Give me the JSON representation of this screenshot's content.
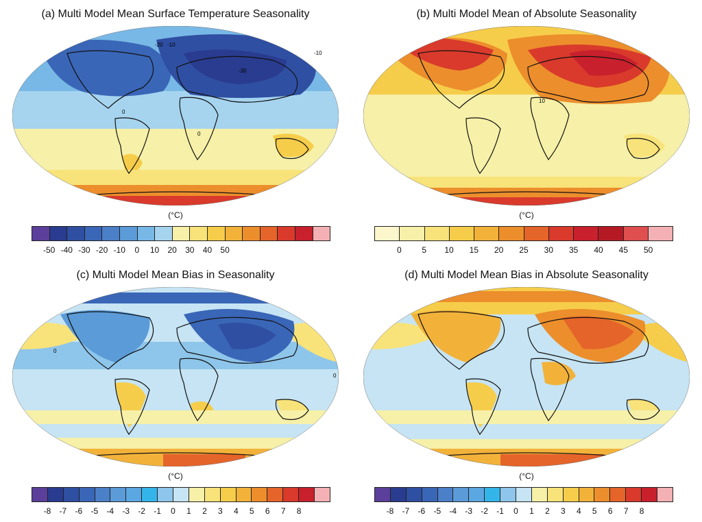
{
  "panels": [
    {
      "title": "(a) Multi Model Mean Surface Temperature Seasonality",
      "unit": "(°C)",
      "ticks": [
        "-50",
        "-40",
        "-30",
        "-20",
        "-10",
        "0",
        "10",
        "20",
        "30",
        "40",
        "50"
      ],
      "contour_labels": [
        "-20",
        "-10",
        "-30",
        "-10",
        "0",
        "0"
      ],
      "colors": [
        "#5b3f9b",
        "#2a3c8f",
        "#2f4fa2",
        "#3a66b7",
        "#4b7fc8",
        "#5b9bd8",
        "#78b8e6",
        "#a6d4ef",
        "#f6f0a8",
        "#f8e37a",
        "#f6cd4a",
        "#f2b23a",
        "#ec8e2c",
        "#e5642a",
        "#d93a2c",
        "#c8202c",
        "#f4b1b5"
      ]
    },
    {
      "title": "(b) Multi Model Mean of Absolute Seasonality",
      "unit": "(°C)",
      "ticks": [
        "0",
        "5",
        "10",
        "15",
        "20",
        "25",
        "30",
        "35",
        "40",
        "45",
        "50"
      ],
      "contour_labels": [
        "10"
      ],
      "colors": [
        "#fbf6cc",
        "#f6f0a8",
        "#f8e37a",
        "#f6cd4a",
        "#f2b23a",
        "#ec8e2c",
        "#e5642a",
        "#d93a2c",
        "#c8202c",
        "#b51a24",
        "#df4f4f",
        "#f4b1b5"
      ]
    },
    {
      "title": "(c) Multi Model Mean Bias in Seasonality",
      "unit": "(°C)",
      "ticks": [
        "-8",
        "-7",
        "-6",
        "-5",
        "-4",
        "-3",
        "-2",
        "-1",
        "0",
        "1",
        "2",
        "3",
        "4",
        "5",
        "6",
        "7",
        "8"
      ],
      "contour_labels": [
        "0",
        "0"
      ],
      "colors": [
        "#5b3f9b",
        "#2a3c8f",
        "#2f4fa2",
        "#3a66b7",
        "#4b7fc8",
        "#5b9bd8",
        "#5ba7e2",
        "#33b5ea",
        "#8ec5ea",
        "#c6e4f3",
        "#f6f0a8",
        "#f8e37a",
        "#f6cd4a",
        "#f2b23a",
        "#ec8e2c",
        "#e5642a",
        "#d93a2c",
        "#c8202c",
        "#f4b1b5"
      ]
    },
    {
      "title": "(d) Multi Model Mean Bias in Absolute Seasonality",
      "unit": "(°C)",
      "ticks": [
        "-8",
        "-7",
        "-6",
        "-5",
        "-4",
        "-3",
        "-2",
        "-1",
        "0",
        "1",
        "2",
        "3",
        "4",
        "5",
        "6",
        "7",
        "8"
      ],
      "contour_labels": [],
      "colors": [
        "#5b3f9b",
        "#2a3c8f",
        "#2f4fa2",
        "#3a66b7",
        "#4b7fc8",
        "#5b9bd8",
        "#5ba7e2",
        "#33b5ea",
        "#8ec5ea",
        "#c6e4f3",
        "#f6f0a8",
        "#f8e37a",
        "#f6cd4a",
        "#f2b23a",
        "#ec8e2c",
        "#e5642a",
        "#d93a2c",
        "#c8202c",
        "#f4b1b5"
      ]
    }
  ]
}
